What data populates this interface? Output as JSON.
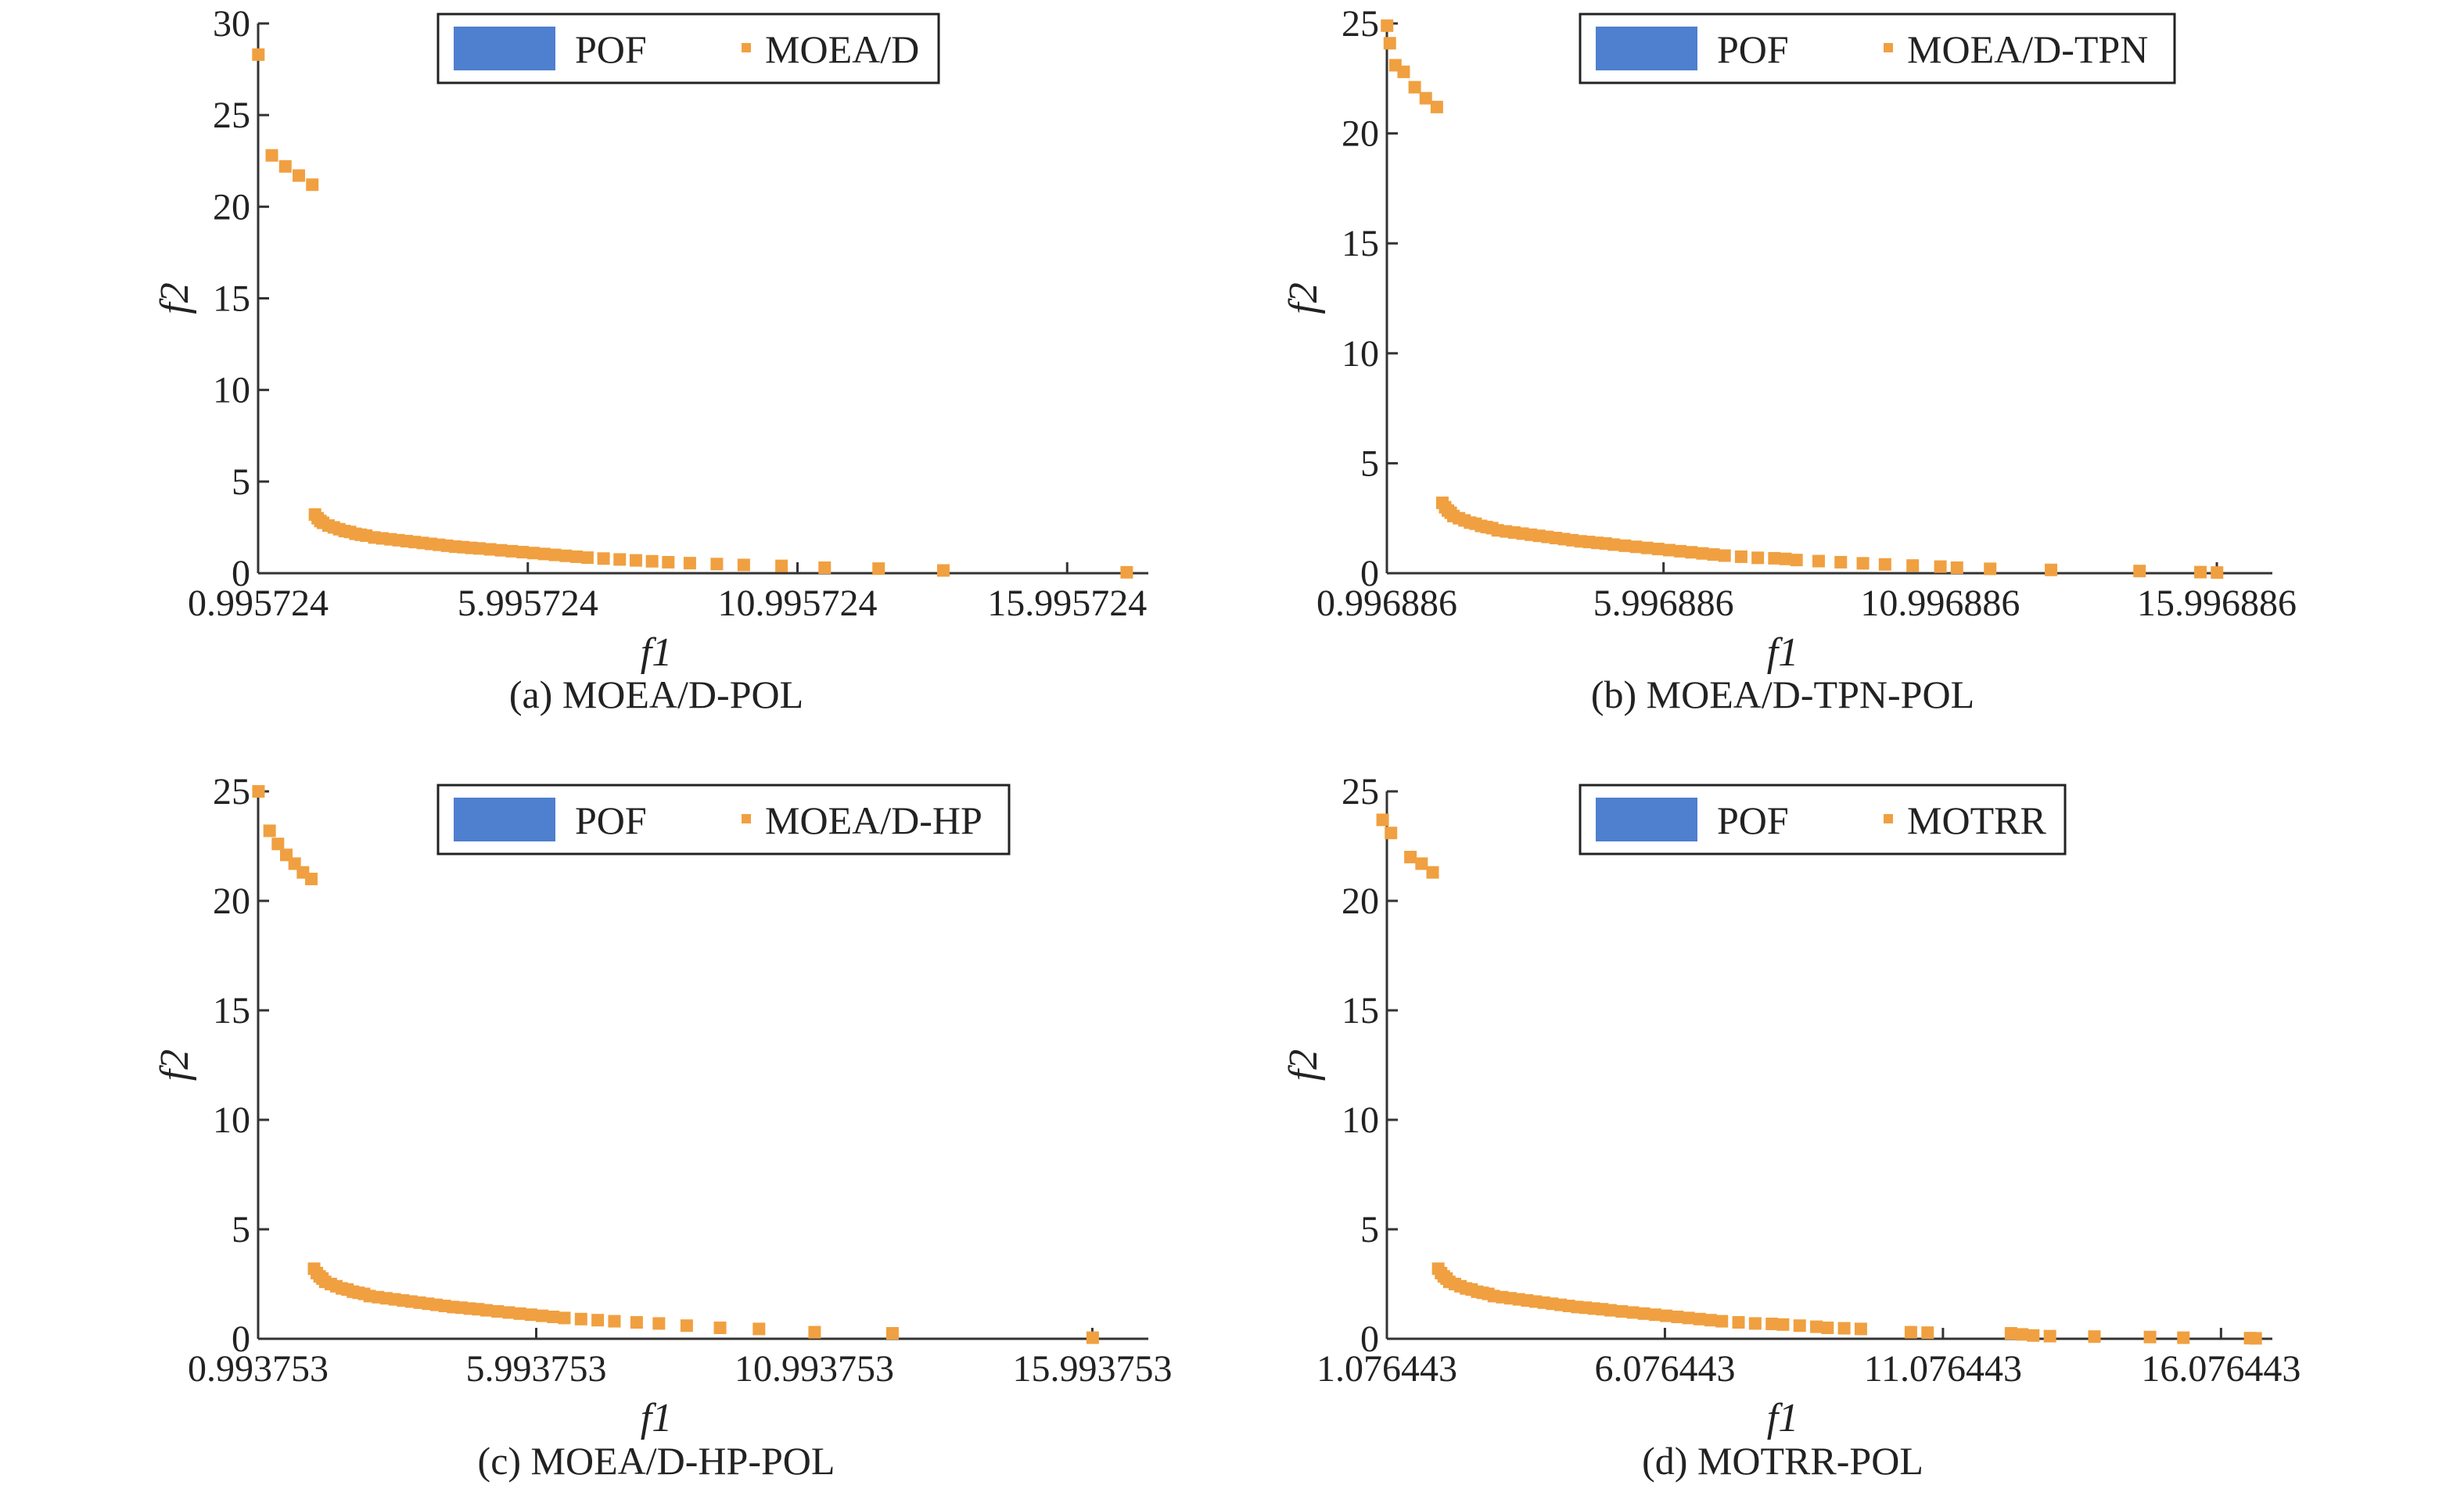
{
  "colors": {
    "pof": "#4f7fcf",
    "points": "#f0a040"
  },
  "chart_data": [
    {
      "type": "scatter",
      "caption": "(a) MOEA/D-POL",
      "xlabel": "f1",
      "ylabel": "f2",
      "xlim": [
        0.995724,
        17.5
      ],
      "ylim": [
        0,
        30
      ],
      "xticks": [
        "0.995724",
        "5.995724",
        "10.995724",
        "15.995724"
      ],
      "xtick_values": [
        0.995724,
        5.995724,
        10.995724,
        15.995724
      ],
      "yticks": [
        "0",
        "5",
        "10",
        "15",
        "20",
        "25",
        "30"
      ],
      "legend": [
        "POF",
        "MOEA/D"
      ],
      "legend_position": "top-center",
      "series": [
        {
          "name": "POF",
          "x": [],
          "y": []
        },
        {
          "name": "MOEA/D",
          "x": [
            1.0,
            1.25,
            1.5,
            1.75,
            2.0,
            2.05,
            2.1,
            2.15,
            2.2,
            2.3,
            2.4,
            2.5,
            2.6,
            2.7,
            2.8,
            2.9,
            3.0,
            3.15,
            3.3,
            3.45,
            3.6,
            3.75,
            3.9,
            4.05,
            4.2,
            4.35,
            4.5,
            4.65,
            4.8,
            4.95,
            5.1,
            5.3,
            5.5,
            5.7,
            5.9,
            6.1,
            6.3,
            6.5,
            6.7,
            6.9,
            7.1,
            7.4,
            7.7,
            8.0,
            8.3,
            8.6,
            9.0,
            9.5,
            10.0,
            10.7,
            11.5,
            12.5,
            13.7,
            17.1
          ],
          "y": [
            28.3,
            22.8,
            22.2,
            21.7,
            21.2,
            3.2,
            3.0,
            2.85,
            2.75,
            2.6,
            2.5,
            2.4,
            2.3,
            2.25,
            2.15,
            2.1,
            2.05,
            1.95,
            1.9,
            1.85,
            1.8,
            1.75,
            1.7,
            1.65,
            1.6,
            1.55,
            1.5,
            1.45,
            1.42,
            1.38,
            1.35,
            1.3,
            1.25,
            1.2,
            1.15,
            1.1,
            1.05,
            1.0,
            0.95,
            0.9,
            0.85,
            0.8,
            0.75,
            0.7,
            0.65,
            0.6,
            0.55,
            0.5,
            0.45,
            0.4,
            0.3,
            0.25,
            0.15,
            0.05
          ]
        }
      ]
    },
    {
      "type": "scatter",
      "caption": "(b) MOEA/D-TPN-POL",
      "xlabel": "f1",
      "ylabel": "f2",
      "xlim": [
        0.996886,
        17.0
      ],
      "ylim": [
        0,
        25
      ],
      "xticks": [
        "0.996886",
        "5.996886",
        "10.996886",
        "15.996886"
      ],
      "xtick_values": [
        0.996886,
        5.996886,
        10.996886,
        15.996886
      ],
      "yticks": [
        "0",
        "5",
        "10",
        "15",
        "20",
        "25"
      ],
      "legend": [
        "POF",
        "MOEA/D-TPN"
      ],
      "legend_position": "top-right",
      "series": [
        {
          "name": "POF",
          "x": [],
          "y": []
        },
        {
          "name": "MOEA/D-TPN",
          "x": [
            1.0,
            1.05,
            1.15,
            1.3,
            1.5,
            1.7,
            1.9,
            2.0,
            2.05,
            2.1,
            2.15,
            2.2,
            2.3,
            2.4,
            2.5,
            2.6,
            2.7,
            2.8,
            2.9,
            3.0,
            3.15,
            3.3,
            3.45,
            3.6,
            3.75,
            3.9,
            4.05,
            4.2,
            4.35,
            4.5,
            4.65,
            4.8,
            4.95,
            5.1,
            5.3,
            5.5,
            5.7,
            5.9,
            6.1,
            6.3,
            6.5,
            6.7,
            6.9,
            7.1,
            7.4,
            7.7,
            8.0,
            8.2,
            8.4,
            8.8,
            9.2,
            9.6,
            10.0,
            10.5,
            11.0,
            11.3,
            11.9,
            13.0,
            14.6,
            15.7,
            16.0
          ],
          "y": [
            24.9,
            24.1,
            23.1,
            22.8,
            22.1,
            21.6,
            21.2,
            3.2,
            3.0,
            2.85,
            2.75,
            2.6,
            2.5,
            2.4,
            2.3,
            2.25,
            2.15,
            2.1,
            2.05,
            1.95,
            1.9,
            1.85,
            1.8,
            1.75,
            1.7,
            1.65,
            1.6,
            1.55,
            1.5,
            1.45,
            1.42,
            1.38,
            1.35,
            1.3,
            1.25,
            1.2,
            1.15,
            1.1,
            1.05,
            1.0,
            0.95,
            0.9,
            0.85,
            0.8,
            0.75,
            0.7,
            0.68,
            0.65,
            0.6,
            0.55,
            0.5,
            0.45,
            0.4,
            0.35,
            0.3,
            0.25,
            0.2,
            0.15,
            0.1,
            0.05,
            0.03
          ]
        }
      ]
    },
    {
      "type": "scatter",
      "caption": "(c) MOEA/D-HP-POL",
      "xlabel": "f1",
      "ylabel": "f2",
      "xlim": [
        0.993753,
        17.0
      ],
      "ylim": [
        0,
        25
      ],
      "xticks": [
        "0.993753",
        "5.993753",
        "10.993753",
        "15.993753"
      ],
      "xtick_values": [
        0.993753,
        5.993753,
        10.993753,
        15.993753
      ],
      "yticks": [
        "0",
        "5",
        "10",
        "15",
        "20",
        "25"
      ],
      "legend": [
        "POF",
        "MOEA/D-HP"
      ],
      "legend_position": "top-center",
      "series": [
        {
          "name": "POF",
          "x": [],
          "y": []
        },
        {
          "name": "MOEA/D-HP",
          "x": [
            1.0,
            1.2,
            1.35,
            1.5,
            1.65,
            1.8,
            1.95,
            2.0,
            2.05,
            2.1,
            2.15,
            2.2,
            2.3,
            2.4,
            2.5,
            2.6,
            2.7,
            2.8,
            2.9,
            3.0,
            3.15,
            3.3,
            3.45,
            3.6,
            3.75,
            3.9,
            4.05,
            4.2,
            4.35,
            4.5,
            4.65,
            4.8,
            4.95,
            5.1,
            5.3,
            5.5,
            5.7,
            5.9,
            6.1,
            6.3,
            6.5,
            6.8,
            7.1,
            7.4,
            7.8,
            8.2,
            8.7,
            9.3,
            10.0,
            11.0,
            12.4,
            16.0
          ],
          "y": [
            25.0,
            23.2,
            22.6,
            22.1,
            21.7,
            21.3,
            21.0,
            3.2,
            3.0,
            2.85,
            2.75,
            2.6,
            2.5,
            2.4,
            2.3,
            2.25,
            2.15,
            2.1,
            2.05,
            1.95,
            1.9,
            1.85,
            1.8,
            1.75,
            1.7,
            1.65,
            1.6,
            1.55,
            1.5,
            1.45,
            1.42,
            1.38,
            1.35,
            1.3,
            1.25,
            1.2,
            1.15,
            1.1,
            1.05,
            1.0,
            0.95,
            0.9,
            0.85,
            0.8,
            0.75,
            0.7,
            0.6,
            0.5,
            0.45,
            0.3,
            0.25,
            0.05
          ]
        }
      ]
    },
    {
      "type": "scatter",
      "caption": "(d) MOTRR-POL",
      "xlabel": "f1",
      "ylabel": "f2",
      "xlim": [
        1.076443,
        17.0
      ],
      "ylim": [
        0,
        25
      ],
      "xticks": [
        "1.076443",
        "6.076443",
        "11.076443",
        "16.076443"
      ],
      "xtick_values": [
        1.076443,
        6.076443,
        11.076443,
        16.076443
      ],
      "yticks": [
        "0",
        "5",
        "10",
        "15",
        "20",
        "25"
      ],
      "legend": [
        "POF",
        "MOTRR"
      ],
      "legend_position": "top-center",
      "series": [
        {
          "name": "POF",
          "x": [],
          "y": []
        },
        {
          "name": "MOTRR",
          "x": [
            1.0,
            1.15,
            1.5,
            1.7,
            1.9,
            2.0,
            2.05,
            2.1,
            2.15,
            2.2,
            2.3,
            2.4,
            2.5,
            2.6,
            2.7,
            2.8,
            2.9,
            3.0,
            3.15,
            3.3,
            3.45,
            3.6,
            3.75,
            3.9,
            4.05,
            4.2,
            4.35,
            4.5,
            4.65,
            4.8,
            4.95,
            5.1,
            5.3,
            5.5,
            5.7,
            5.9,
            6.1,
            6.3,
            6.5,
            6.7,
            6.9,
            7.1,
            7.4,
            7.7,
            8.0,
            8.2,
            8.5,
            8.8,
            9.0,
            9.3,
            9.6,
            10.5,
            10.8,
            12.3,
            12.5,
            12.7,
            13.0,
            13.8,
            14.8,
            15.4,
            16.6,
            16.7
          ],
          "y": [
            23.7,
            23.1,
            22.0,
            21.7,
            21.3,
            3.2,
            3.0,
            2.85,
            2.75,
            2.6,
            2.5,
            2.4,
            2.3,
            2.25,
            2.15,
            2.1,
            2.05,
            1.95,
            1.9,
            1.85,
            1.8,
            1.75,
            1.7,
            1.65,
            1.6,
            1.55,
            1.5,
            1.45,
            1.42,
            1.38,
            1.35,
            1.3,
            1.25,
            1.2,
            1.15,
            1.1,
            1.05,
            1.0,
            0.95,
            0.9,
            0.85,
            0.8,
            0.75,
            0.7,
            0.68,
            0.65,
            0.6,
            0.55,
            0.5,
            0.48,
            0.45,
            0.3,
            0.28,
            0.25,
            0.2,
            0.15,
            0.12,
            0.1,
            0.08,
            0.05,
            0.03,
            0.02
          ]
        }
      ]
    }
  ]
}
